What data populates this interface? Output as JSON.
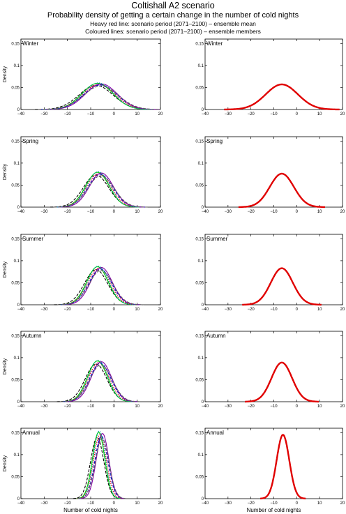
{
  "header": {
    "title": "Coltishall A2 scenario",
    "subtitle": "Probability density of getting a certain change in the number of cold nights",
    "line1": "Heavy red line: scenario period (2071–2100) – ensemble mean",
    "line2": "Coloured lines: scenario period (2071–2100) – ensemble members"
  },
  "chart_data": {
    "type": "line",
    "title": "Coltishall A2 scenario",
    "xlabel": "Number of cold nights",
    "ylabel": "Density",
    "xlim": [
      -40,
      20
    ],
    "ylim": [
      0,
      0.16
    ],
    "xticks": [
      "−40",
      "−30",
      "−20",
      "−10",
      "0",
      "10",
      "20"
    ],
    "yticks": [
      "0",
      "0.05",
      "0.1",
      "0.15"
    ],
    "colors": {
      "mean": "#e00000",
      "members": [
        "#000000",
        "#00cc00",
        "#e00000",
        "#0000cc",
        "#8000a0",
        "#00a0a0",
        "#606060"
      ]
    },
    "panels": [
      {
        "season": "Winter",
        "mean": -6.5,
        "peak": 0.057
      },
      {
        "season": "Spring",
        "mean": -6.5,
        "peak": 0.076
      },
      {
        "season": "Summer",
        "mean": -6.5,
        "peak": 0.083
      },
      {
        "season": "Autumn",
        "mean": -6.5,
        "peak": 0.089
      },
      {
        "season": "Annual",
        "mean": -6.0,
        "peak": 0.145
      }
    ],
    "members": {
      "x_offsets": [
        -1.2,
        -0.6,
        0,
        0.6,
        1.1,
        -0.3,
        0.9
      ],
      "peak_scales": [
        0.96,
        1.04,
        1.0,
        0.98,
        1.02,
        1.06,
        0.94
      ]
    }
  }
}
